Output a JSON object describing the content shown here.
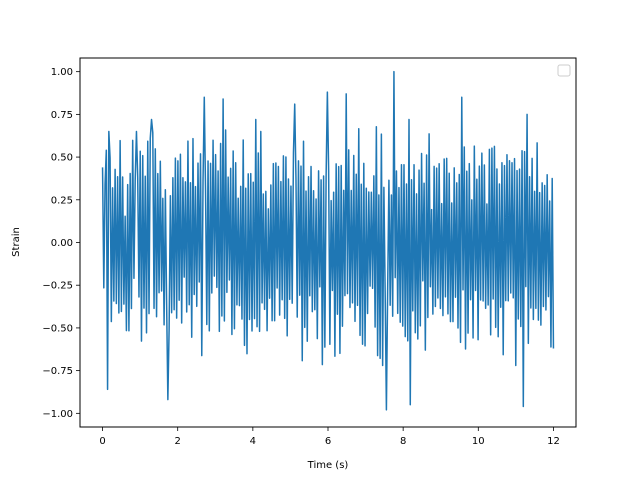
{
  "chart_data": {
    "type": "line",
    "title": "",
    "xlabel": "Time (s)",
    "ylabel": "Strain",
    "xlim": [
      -0.6,
      12.6
    ],
    "ylim": [
      -1.08,
      1.08
    ],
    "xticks": [
      0,
      2,
      4,
      6,
      8,
      10,
      12
    ],
    "xtick_labels": [
      "0",
      "2",
      "4",
      "6",
      "8",
      "10",
      "12"
    ],
    "yticks": [
      -1.0,
      -0.75,
      -0.5,
      -0.25,
      0.0,
      0.25,
      0.5,
      0.75,
      1.0
    ],
    "ytick_labels": [
      "−1.00",
      "−0.75",
      "−0.50",
      "−0.25",
      "0.00",
      "0.25",
      "0.50",
      "0.75",
      "1.00"
    ],
    "grid": false,
    "legend": {
      "position": "upper right",
      "entries": []
    },
    "colors": {
      "series": "#1f77b4",
      "axes": "#000000"
    },
    "series": [
      {
        "sample_count": 360,
        "x_range": [
          0,
          12
        ],
        "envelope": {
          "typical_upper": 0.5,
          "typical_lower": -0.5
        },
        "peaks": [
          {
            "x": 0.1,
            "y": 0.54
          },
          {
            "x": 0.15,
            "y": -0.86
          },
          {
            "x": 0.18,
            "y": 0.65
          },
          {
            "x": 0.9,
            "y": 0.65
          },
          {
            "x": 1.3,
            "y": 0.72
          },
          {
            "x": 1.75,
            "y": -0.92
          },
          {
            "x": 2.7,
            "y": 0.85
          },
          {
            "x": 3.2,
            "y": 0.84
          },
          {
            "x": 5.1,
            "y": 0.81
          },
          {
            "x": 6.0,
            "y": 0.88
          },
          {
            "x": 6.5,
            "y": 0.87
          },
          {
            "x": 7.55,
            "y": -0.98
          },
          {
            "x": 7.75,
            "y": 1.0
          },
          {
            "x": 8.2,
            "y": -0.95
          },
          {
            "x": 9.55,
            "y": 0.85
          },
          {
            "x": 11.2,
            "y": -0.96
          },
          {
            "x": 11.3,
            "y": 0.75
          }
        ]
      }
    ]
  }
}
